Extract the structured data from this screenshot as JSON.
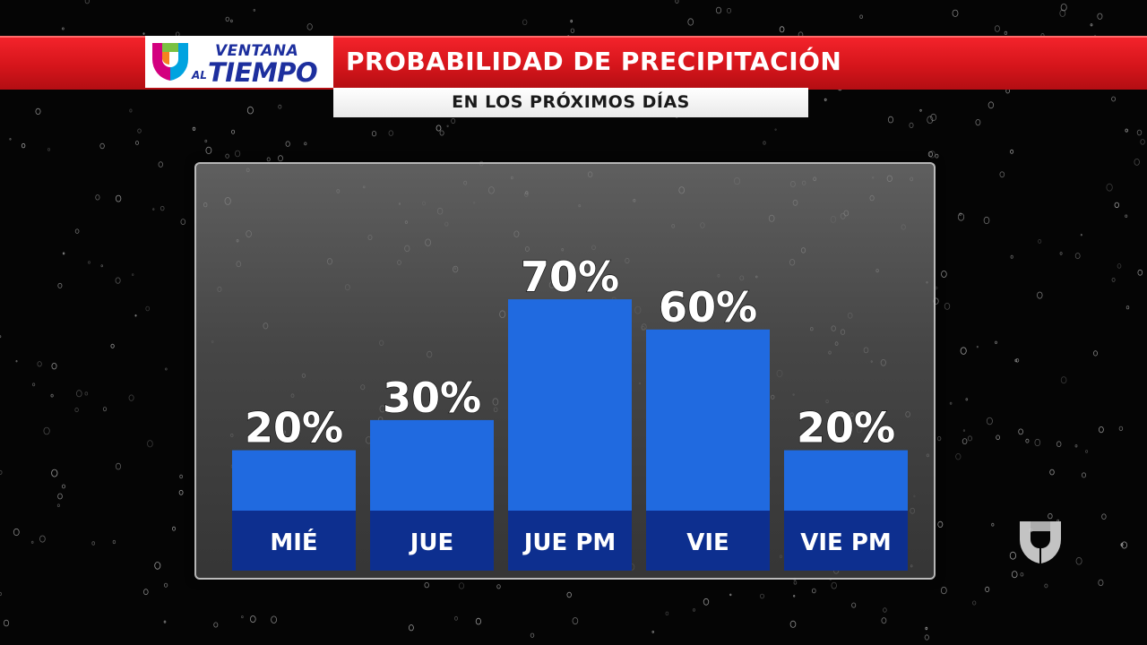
{
  "header": {
    "logo": {
      "line1": "VENTANA",
      "line2_small": "AL",
      "line2": "TIEMPO"
    },
    "title": "PROBABILIDAD DE PRECIPITACIÓN",
    "subtitle": "EN LOS PRÓXIMOS DÍAS"
  },
  "colors": {
    "header_red": "#e01b22",
    "bar_blue": "#206ae0",
    "label_band": "#0d2f8f",
    "logo_blue": "#1d2f9e"
  },
  "icons": [
    "univision-logo-icon",
    "univision-watermark-icon"
  ],
  "chart_data": {
    "type": "bar",
    "title": "PROBABILIDAD DE PRECIPITACIÓN",
    "subtitle": "EN LOS PRÓXIMOS DÍAS",
    "categories": [
      "MIÉ",
      "JUE",
      "JUE PM",
      "VIE",
      "VIE PM"
    ],
    "values": [
      20,
      30,
      70,
      60,
      20
    ],
    "value_labels": [
      "20%",
      "30%",
      "70%",
      "60%",
      "20%"
    ],
    "unit": "%",
    "ylim": [
      0,
      100
    ],
    "grid": false,
    "legend": "none"
  }
}
